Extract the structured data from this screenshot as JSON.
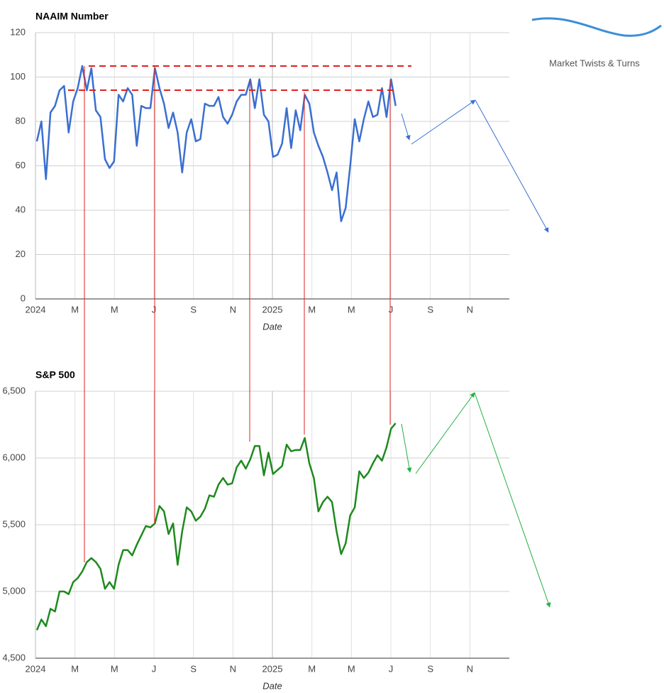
{
  "logo": {
    "text": "Market Twists & Turns"
  },
  "chart_data": [
    {
      "type": "line",
      "title": "NAAIM Number",
      "x_label": "Date",
      "x": [
        0.07,
        0.3,
        0.53,
        0.76,
        0.99,
        1.22,
        1.45,
        1.68,
        1.91,
        2.14,
        2.37,
        2.6,
        2.83,
        3.06,
        3.29,
        3.52,
        3.75,
        3.98,
        4.21,
        4.44,
        4.67,
        4.9,
        5.13,
        5.36,
        5.59,
        5.82,
        6.05,
        6.28,
        6.51,
        6.74,
        6.97,
        7.2,
        7.43,
        7.66,
        7.89,
        8.12,
        8.35,
        8.58,
        8.81,
        9.04,
        9.27,
        9.5,
        9.73,
        9.96,
        10.19,
        10.42,
        10.65,
        10.88,
        11.11,
        11.34,
        11.57,
        11.8,
        12.03,
        12.26,
        12.49,
        12.72,
        12.95,
        13.18,
        13.41,
        13.64,
        13.87,
        14.1,
        14.33,
        14.56,
        14.79,
        15.02,
        15.25,
        15.48,
        15.71,
        15.94,
        16.17,
        16.4,
        16.63,
        16.86,
        17.09,
        17.32,
        17.55,
        17.78,
        18.01,
        18.24
      ],
      "series": [
        {
          "name": "NAAIM Number",
          "color": "#3a6fd0",
          "values": [
            71,
            80,
            54,
            84,
            87,
            94,
            96,
            75,
            89,
            95,
            105,
            94,
            104,
            85,
            82,
            63,
            59,
            62,
            92,
            89,
            95,
            92,
            69,
            87,
            86,
            86,
            104,
            95,
            88,
            77,
            84,
            75,
            57,
            75,
            81,
            71,
            72,
            88,
            87,
            87,
            91,
            82,
            79,
            83,
            89,
            92,
            92,
            99,
            86,
            99,
            83,
            80,
            64,
            65,
            70,
            86,
            68,
            85,
            76,
            92,
            88,
            75,
            69,
            64,
            57,
            49,
            57,
            35,
            41,
            60,
            81,
            71,
            81,
            89,
            82,
            83,
            95,
            82,
            99,
            87
          ]
        }
      ],
      "xlim": [
        0,
        24
      ],
      "xticks": [
        {
          "value": 0,
          "label": "2024"
        },
        {
          "value": 2,
          "label": "M"
        },
        {
          "value": 4,
          "label": "M"
        },
        {
          "value": 6,
          "label": "J"
        },
        {
          "value": 8,
          "label": "S"
        },
        {
          "value": 10,
          "label": "N"
        },
        {
          "value": 12,
          "label": "2025"
        },
        {
          "value": 14,
          "label": "M"
        },
        {
          "value": 16,
          "label": "M"
        },
        {
          "value": 18,
          "label": "J"
        },
        {
          "value": 20,
          "label": "S"
        },
        {
          "value": 22,
          "label": "N"
        }
      ],
      "ylim": [
        0,
        120
      ],
      "yticks": [
        0,
        20,
        40,
        60,
        80,
        100,
        120
      ],
      "grid": true
    },
    {
      "type": "line",
      "title": "S&P 500",
      "x_label": "Date",
      "x": [
        0.07,
        0.3,
        0.53,
        0.76,
        0.99,
        1.22,
        1.45,
        1.68,
        1.91,
        2.14,
        2.37,
        2.6,
        2.83,
        3.06,
        3.29,
        3.52,
        3.75,
        3.98,
        4.21,
        4.44,
        4.67,
        4.9,
        5.13,
        5.36,
        5.59,
        5.82,
        6.05,
        6.28,
        6.51,
        6.74,
        6.97,
        7.2,
        7.43,
        7.66,
        7.89,
        8.12,
        8.35,
        8.58,
        8.81,
        9.04,
        9.27,
        9.5,
        9.73,
        9.96,
        10.19,
        10.42,
        10.65,
        10.88,
        11.11,
        11.34,
        11.57,
        11.8,
        12.03,
        12.26,
        12.49,
        12.72,
        12.95,
        13.18,
        13.41,
        13.64,
        13.87,
        14.1,
        14.33,
        14.56,
        14.79,
        15.02,
        15.25,
        15.48,
        15.71,
        15.94,
        16.17,
        16.4,
        16.63,
        16.86,
        17.09,
        17.32,
        17.55,
        17.78,
        18.01,
        18.24
      ],
      "series": [
        {
          "name": "S&P 500",
          "color": "#1e8a1e",
          "values": [
            4710,
            4790,
            4740,
            4870,
            4850,
            5000,
            5000,
            4980,
            5070,
            5100,
            5150,
            5220,
            5250,
            5220,
            5170,
            5020,
            5070,
            5020,
            5200,
            5310,
            5310,
            5270,
            5350,
            5420,
            5490,
            5480,
            5510,
            5640,
            5600,
            5430,
            5510,
            5200,
            5450,
            5630,
            5600,
            5530,
            5560,
            5620,
            5720,
            5710,
            5800,
            5850,
            5800,
            5810,
            5930,
            5980,
            5920,
            5990,
            6090,
            6090,
            5870,
            6040,
            5880,
            5910,
            5940,
            6100,
            6050,
            6060,
            6060,
            6150,
            5960,
            5850,
            5600,
            5670,
            5710,
            5670,
            5450,
            5280,
            5360,
            5570,
            5630,
            5900,
            5850,
            5890,
            5960,
            6020,
            5980,
            6080,
            6220,
            6260
          ]
        }
      ],
      "xlim": [
        0,
        24
      ],
      "xticks": [
        {
          "value": 0,
          "label": "2024"
        },
        {
          "value": 2,
          "label": "M"
        },
        {
          "value": 4,
          "label": "M"
        },
        {
          "value": 6,
          "label": "J"
        },
        {
          "value": 8,
          "label": "S"
        },
        {
          "value": 10,
          "label": "N"
        },
        {
          "value": 12,
          "label": "2025"
        },
        {
          "value": 14,
          "label": "M"
        },
        {
          "value": 16,
          "label": "M"
        },
        {
          "value": 18,
          "label": "J"
        },
        {
          "value": 20,
          "label": "S"
        },
        {
          "value": 22,
          "label": "N"
        }
      ],
      "ylim": [
        4500,
        6500
      ],
      "yticks": [
        {
          "value": 4500,
          "label": "4,500"
        },
        {
          "value": 5000,
          "label": "5,000"
        },
        {
          "value": 5500,
          "label": "5,500"
        },
        {
          "value": 6000,
          "label": "6,000"
        },
        {
          "value": 6500,
          "label": "6,500"
        }
      ],
      "grid": true
    }
  ]
}
